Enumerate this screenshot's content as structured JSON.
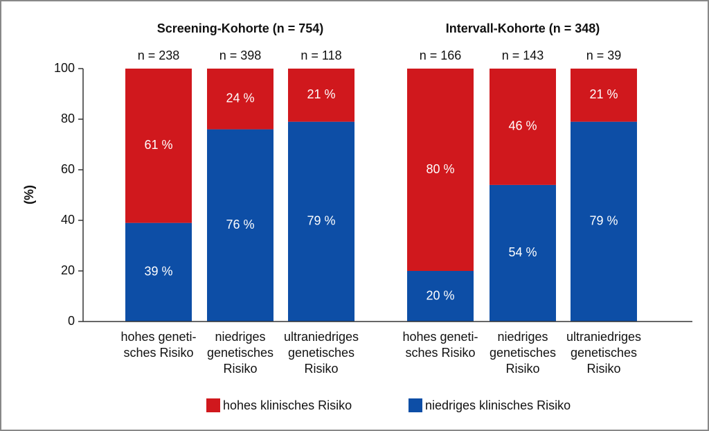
{
  "chart_data": {
    "type": "stacked_bar",
    "group_titles": [
      "Screening-Kohorte (n = 754)",
      "Intervall-Kohorte (n = 348)"
    ],
    "n_labels": [
      "n = 238",
      "n = 398",
      "n = 118",
      "n = 166",
      "n = 143",
      "n = 39"
    ],
    "categories": [
      [
        "hohes geneti-",
        "sches Risiko"
      ],
      [
        "niedriges",
        "genetisches",
        "Risiko"
      ],
      [
        "ultraniedriges",
        "genetisches",
        "Risiko"
      ],
      [
        "hohes geneti-",
        "sches Risiko"
      ],
      [
        "niedriges",
        "genetisches",
        "Risiko"
      ],
      [
        "ultraniedriges",
        "genetisches",
        "Risiko"
      ]
    ],
    "y_label": "(%)",
    "series": [
      {
        "name": "hohes klinisches Risiko",
        "color": "#d0181d",
        "values": [
          61,
          24,
          21,
          80,
          46,
          21
        ],
        "value_labels": [
          "61 %",
          "24 %",
          "21 %",
          "80 %",
          "46 %",
          "21 %"
        ]
      },
      {
        "name": "niedriges klinisches Risiko",
        "color": "#0d4ea6",
        "values": [
          39,
          76,
          79,
          20,
          54,
          79
        ],
        "value_labels": [
          "39 %",
          "76 %",
          "79 %",
          "20 %",
          "54 %",
          "79 %"
        ]
      }
    ],
    "ylim": [
      0,
      100
    ],
    "yticks": [
      0,
      20,
      40,
      60,
      80,
      100
    ]
  }
}
